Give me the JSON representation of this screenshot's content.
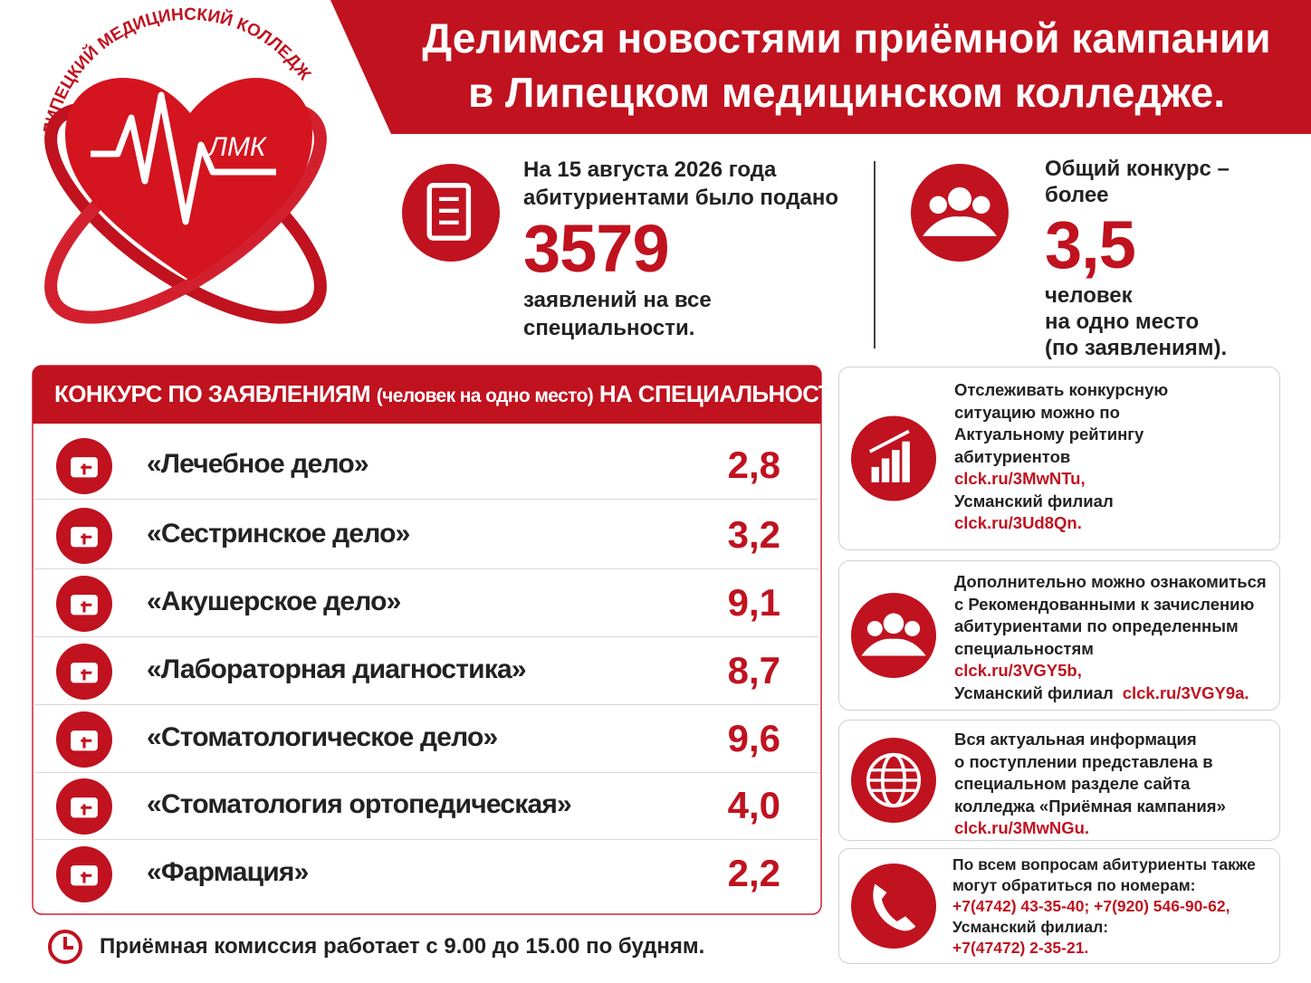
{
  "logo": {
    "arc_text": "ЛИПЕЦКИЙ МЕДИЦИНСКИЙ КОЛЛЕДЖ",
    "monogram": "ЛМК"
  },
  "header": {
    "title_lines": [
      "Делимся новостями приёмной кампании",
      "в Липецком медицинском колледже."
    ]
  },
  "stats": [
    {
      "before": [
        "На 15 августа 2026 года",
        "абитуриентами было подано"
      ],
      "number": "3579",
      "after": [
        "заявлений на все",
        "специальности."
      ]
    },
    {
      "before": [
        "Общий конкурс –",
        "более"
      ],
      "number": "3,5",
      "after": [
        "человек",
        "на одно место",
        "(по заявлениям)."
      ]
    }
  ],
  "table": {
    "title": "КОНКУРС ПО ЗАЯВЛЕНИЯМ",
    "title_note": "(человек на одно место)",
    "title_end": "НА СПЕЦИАЛЬНОСТИ:",
    "rows": [
      {
        "name": "«Лечебное дело»",
        "value": "2,8"
      },
      {
        "name": "«Сестринское дело»",
        "value": "3,2"
      },
      {
        "name": "«Акушерское дело»",
        "value": "9,1"
      },
      {
        "name": "«Лабораторная диагностика»",
        "value": "8,7"
      },
      {
        "name": "«Стоматологическое дело»",
        "value": "9,6"
      },
      {
        "name": "«Стоматология ортопедическая»",
        "value": "4,0"
      },
      {
        "name": "«Фармация»",
        "value": "2,2"
      }
    ]
  },
  "cards": [
    {
      "lines": [
        [
          {
            "text": "Отслеживать конкурсную"
          }
        ],
        [
          {
            "text": "ситуацию можно по"
          }
        ],
        [
          {
            "text": "Актуальному рейтингу"
          }
        ],
        [
          {
            "text": "абитуриентов"
          }
        ],
        [
          {
            "text": "clck.ru/3MwNTu,",
            "link": true
          }
        ],
        [
          {
            "text": "Усманский филиал"
          }
        ],
        [
          {
            "text": "clck.ru/3Ud8Qn.",
            "link": true
          }
        ]
      ]
    },
    {
      "lines": [
        [
          {
            "text": "Дополнительно можно ознакомиться"
          }
        ],
        [
          {
            "text": "с Рекомендованными к зачислению"
          }
        ],
        [
          {
            "text": "абитуриентами по определенным"
          }
        ],
        [
          {
            "text": "специальностям"
          }
        ],
        [
          {
            "text": "clck.ru/3VGY5b,",
            "link": true
          }
        ],
        [
          {
            "text": "Усманский филиал"
          },
          {
            "text": "clck.ru/3VGY9a.",
            "link": true
          }
        ]
      ]
    },
    {
      "lines": [
        [
          {
            "text": "Вся актуальная информация"
          }
        ],
        [
          {
            "text": "о поступлении представлена в"
          }
        ],
        [
          {
            "text": "специальном разделе сайта"
          }
        ],
        [
          {
            "text": "колледжа «Приёмная кампания»"
          }
        ],
        [
          {
            "text": "clck.ru/3MwNGu.",
            "link": true
          }
        ]
      ]
    },
    {
      "lines": [
        [
          {
            "text": "По всем вопросам абитуриенты также"
          }
        ],
        [
          {
            "text": "могут обратиться по номерам:"
          }
        ],
        [
          {
            "text": "+7(4742) 43-35-40; +7(920) 546-90-62,",
            "link": true
          }
        ],
        [
          {
            "text": "Усманский филиал:"
          }
        ],
        [
          {
            "text": "+7(47472) 2-35-21.",
            "link": true
          }
        ]
      ]
    }
  ],
  "footer": {
    "text": "Приёмная комиссия работает  с 9.00 до 15.00 по будням."
  }
}
